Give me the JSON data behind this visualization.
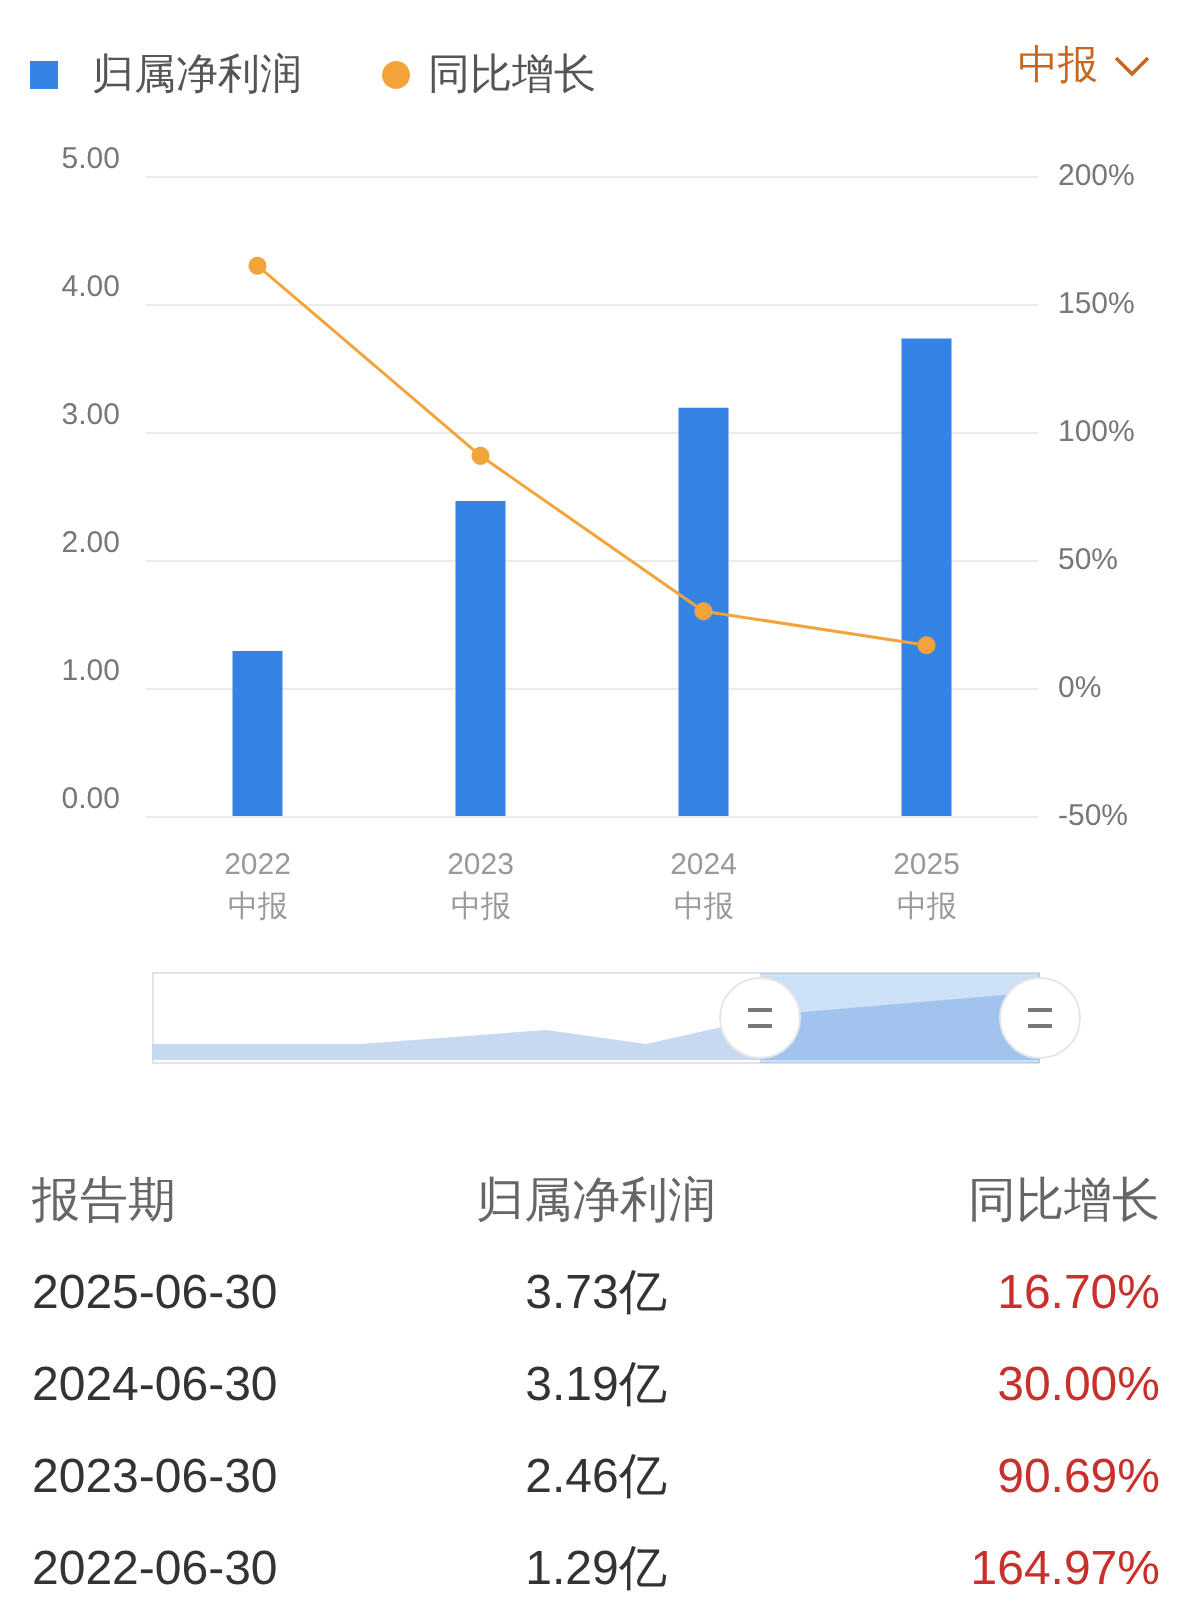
{
  "chart_data": {
    "type": "bar",
    "categories": [
      "2022\n中报",
      "2023\n中报",
      "2024\n中报",
      "2025\n中报"
    ],
    "series": [
      {
        "name": "归属净利润",
        "color": "#3583e4",
        "values": [
          1.29,
          2.46,
          3.19,
          3.73
        ]
      },
      {
        "name": "同比增长",
        "type": "line",
        "axis": "y2",
        "color": "#f2a43a",
        "values": [
          164.97,
          90.69,
          30.0,
          16.7
        ]
      }
    ],
    "ylim": [
      0,
      5
    ],
    "yticks": [
      {
        "value": 0,
        "label": "0.00"
      },
      {
        "value": 1,
        "label": "1.00"
      },
      {
        "value": 2,
        "label": "2.00"
      },
      {
        "value": 3,
        "label": "3.00"
      },
      {
        "value": 4,
        "label": "4.00"
      },
      {
        "value": 5,
        "label": "5.00"
      }
    ],
    "y2lim": [
      -50,
      200
    ],
    "y2ticks": [
      {
        "value": -50,
        "label": "-50%"
      },
      {
        "value": 0,
        "label": "0%"
      },
      {
        "value": 50,
        "label": "50%"
      },
      {
        "value": 100,
        "label": "100%"
      },
      {
        "value": 150,
        "label": "150%"
      },
      {
        "value": 200,
        "label": "200%"
      }
    ],
    "grid": "y",
    "legend": "top left",
    "marker": "circle",
    "annotations": [
      "中报",
      "报告期",
      "2025-06-30",
      "3.73亿",
      "16.70%",
      "2024-06-30",
      "3.19亿",
      "30.00%",
      "2023-06-30",
      "2.46亿",
      "90.69%",
      "2022-06-30",
      "1.29亿",
      "164.97%"
    ]
  }
}
